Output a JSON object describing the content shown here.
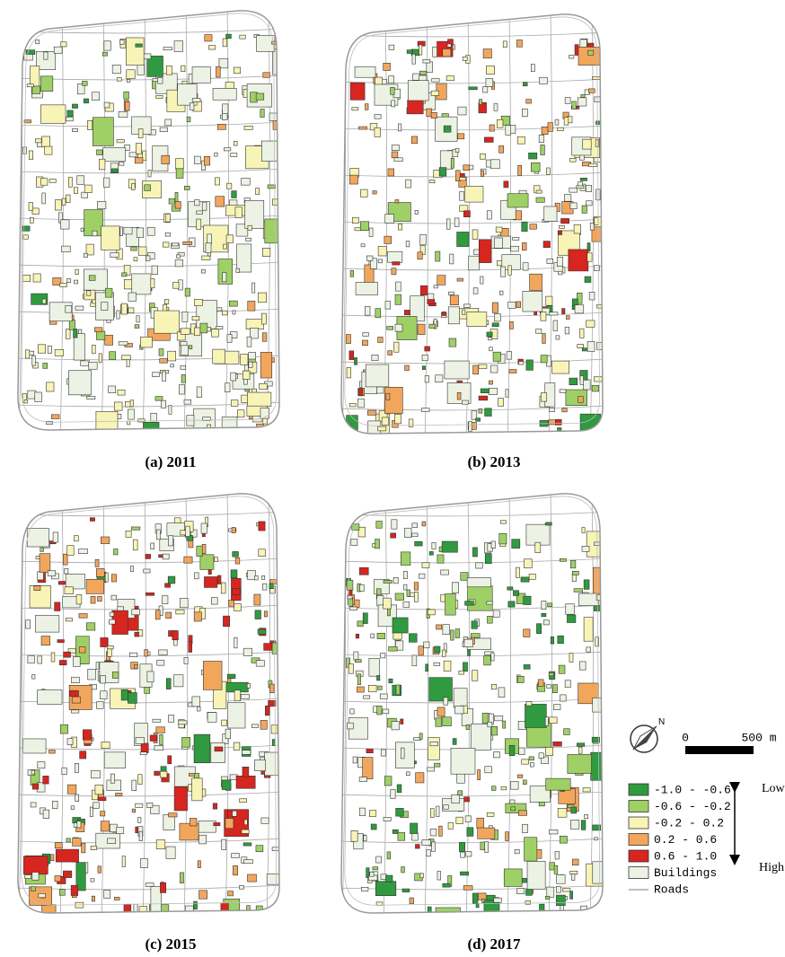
{
  "panels": [
    {
      "caption": "(a) 2011"
    },
    {
      "caption": "(b) 2013"
    },
    {
      "caption": "(c) 2015"
    },
    {
      "caption": "(d) 2017"
    }
  ],
  "legend": {
    "items": [
      {
        "label": "-1.0 - -0.6",
        "color": "#2f9a3f"
      },
      {
        "label": "-0.6 - -0.2",
        "color": "#9fd066"
      },
      {
        "label": "-0.2 - 0.2",
        "color": "#f8f4b6"
      },
      {
        "label": "0.2 - 0.6",
        "color": "#f2a65c"
      },
      {
        "label": "0.6 - 1.0",
        "color": "#d6261f"
      },
      {
        "label": "Buildings",
        "color": "#edf3e4"
      },
      {
        "label": "Roads"
      }
    ],
    "low": "Low",
    "high": "High"
  },
  "scale_bar": {
    "start": "0",
    "end": "500 m"
  }
}
